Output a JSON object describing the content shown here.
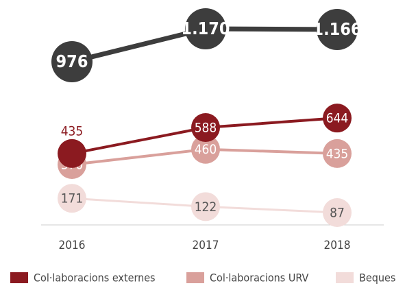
{
  "chart_data": {
    "type": "line",
    "categories": [
      "2016",
      "2017",
      "2018"
    ],
    "series": [
      {
        "color": "#3d3d3d",
        "values": [
          976,
          1170,
          1166
        ],
        "value_labels": [
          "976",
          "1.170",
          "1.166"
        ]
      },
      {
        "name": "Col·laboracions externes",
        "color": "#8b1a20",
        "values": [
          435,
          588,
          644
        ]
      },
      {
        "name": "Col·laboracions URV",
        "color": "#d9a09b",
        "values": [
          370,
          460,
          435
        ]
      },
      {
        "name": "Beques",
        "color": "#f2dcda",
        "values": [
          171,
          122,
          87
        ]
      }
    ]
  }
}
